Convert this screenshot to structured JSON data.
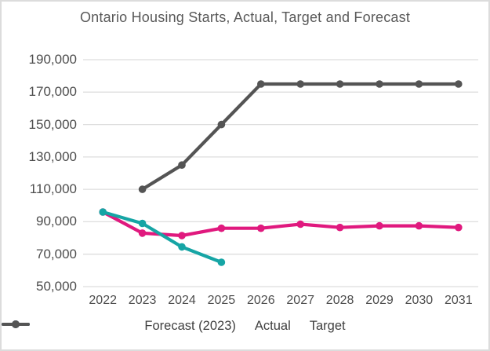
{
  "chart_data": {
    "type": "line",
    "title": "Ontario Housing Starts, Actual, Target and Forecast",
    "x": [
      "2022",
      "2023",
      "2024",
      "2025",
      "2026",
      "2027",
      "2028",
      "2029",
      "2030",
      "2031"
    ],
    "series": [
      {
        "name": "Forecast (2023)",
        "color": "#e0197e",
        "values": [
          96000,
          83000,
          81500,
          86000,
          86000,
          88500,
          86500,
          87500,
          87500,
          86500
        ]
      },
      {
        "name": "Actual",
        "color": "#16a5a5",
        "values": [
          96000,
          89000,
          74500,
          65000,
          null,
          null,
          null,
          null,
          null,
          null
        ]
      },
      {
        "name": "Target",
        "color": "#545454",
        "values": [
          null,
          110000,
          125000,
          150000,
          175000,
          175000,
          175000,
          175000,
          175000,
          175000
        ]
      }
    ],
    "ylim": [
      50000,
      190000
    ],
    "ytick_step": 20000,
    "ytick_labels": [
      "50,000",
      "70,000",
      "90,000",
      "110,000",
      "130,000",
      "150,000",
      "170,000",
      "190,000"
    ],
    "grid": true,
    "gridline_color": "#dedede",
    "legend_position": "bottom",
    "background_color": "#ffffff",
    "text_color": "#4d4d4d"
  }
}
